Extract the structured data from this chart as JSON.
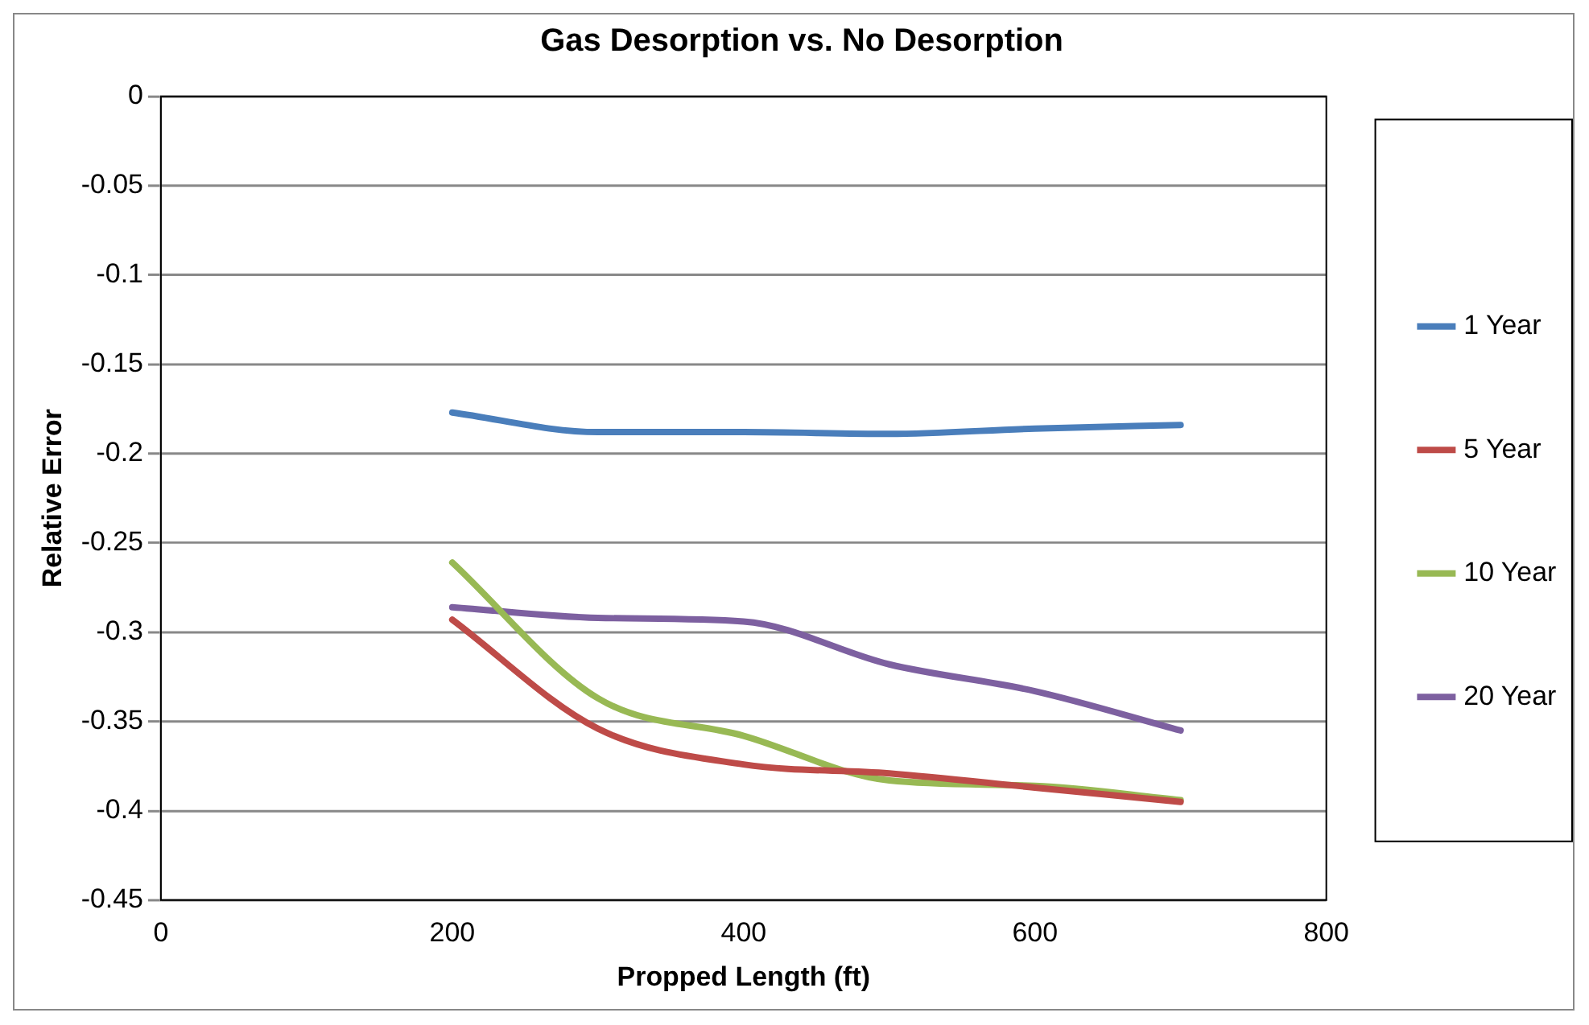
{
  "chart_data": {
    "type": "line",
    "title": "Gas Desorption vs. No Desorption",
    "xlabel": "Propped Length (ft)",
    "ylabel": "Relative Error",
    "x": [
      200,
      300,
      400,
      500,
      600,
      700
    ],
    "series": [
      {
        "name": "1 Year",
        "color": "#4a7ebb",
        "values": [
          -0.177,
          -0.188,
          -0.188,
          -0.189,
          -0.186,
          -0.184
        ]
      },
      {
        "name": "5 Year",
        "color": "#be4b48",
        "values": [
          -0.293,
          -0.354,
          -0.374,
          -0.379,
          -0.387,
          -0.395
        ]
      },
      {
        "name": "10 Year",
        "color": "#98b954",
        "values": [
          -0.261,
          -0.337,
          -0.358,
          -0.383,
          -0.386,
          -0.394
        ]
      },
      {
        "name": "20 Year",
        "color": "#7d60a0",
        "values": [
          -0.286,
          -0.292,
          -0.294,
          -0.318,
          -0.333,
          -0.355
        ]
      }
    ],
    "xlim": [
      0,
      800
    ],
    "xticks": [
      0,
      200,
      400,
      600,
      800
    ],
    "ylim": [
      -0.45,
      0
    ],
    "yticks": [
      0,
      -0.05,
      -0.1,
      -0.15,
      -0.2,
      -0.25,
      -0.3,
      -0.35,
      -0.4,
      -0.45
    ],
    "grid": "y",
    "legend": "right",
    "marker": "none",
    "line_style": "solid"
  }
}
